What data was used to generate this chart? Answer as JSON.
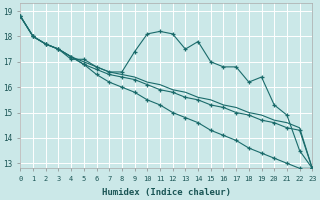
{
  "xlabel": "Humidex (Indice chaleur)",
  "bg_color": "#cbe8e8",
  "grid_color": "#ffffff",
  "line_color": "#1a6b6b",
  "xlim": [
    0,
    23
  ],
  "ylim": [
    12.8,
    19.3
  ],
  "yticks": [
    13,
    14,
    15,
    16,
    17,
    18,
    19
  ],
  "xticks": [
    0,
    1,
    2,
    3,
    4,
    5,
    6,
    7,
    8,
    9,
    10,
    11,
    12,
    13,
    14,
    15,
    16,
    17,
    18,
    19,
    20,
    21,
    22,
    23
  ],
  "series1_x": [
    0,
    1,
    2,
    3,
    4,
    5,
    6,
    7,
    8,
    9,
    10,
    11,
    12,
    13,
    14,
    15,
    16,
    17,
    18,
    19,
    20,
    21,
    22,
    23
  ],
  "series1_y": [
    18.8,
    18.0,
    17.7,
    17.5,
    17.1,
    17.1,
    16.8,
    16.6,
    16.6,
    17.4,
    18.1,
    18.2,
    18.1,
    17.5,
    17.8,
    17.0,
    16.8,
    16.8,
    16.2,
    16.4,
    15.3,
    14.9,
    13.5,
    12.8
  ],
  "series2_x": [
    0,
    1,
    2,
    3,
    4,
    5,
    6,
    7,
    8,
    9,
    10,
    11,
    12,
    13,
    14,
    15,
    16,
    17,
    18,
    19,
    20,
    21,
    22,
    23
  ],
  "series2_y": [
    18.8,
    18.0,
    17.7,
    17.5,
    17.2,
    16.9,
    16.7,
    16.5,
    16.4,
    16.3,
    16.1,
    15.9,
    15.8,
    15.6,
    15.5,
    15.3,
    15.2,
    15.0,
    14.9,
    14.7,
    14.6,
    14.4,
    14.3,
    12.8
  ],
  "series3_x": [
    0,
    1,
    2,
    3,
    4,
    5,
    6,
    7,
    8,
    9,
    10,
    11,
    12,
    13,
    14,
    15,
    16,
    17,
    18,
    19,
    20,
    21,
    22,
    23
  ],
  "series3_y": [
    18.8,
    18.0,
    17.7,
    17.5,
    17.2,
    17.0,
    16.8,
    16.6,
    16.5,
    16.4,
    16.2,
    16.1,
    15.9,
    15.8,
    15.6,
    15.5,
    15.3,
    15.2,
    15.0,
    14.9,
    14.7,
    14.6,
    14.4,
    12.8
  ],
  "series4_x": [
    0,
    1,
    2,
    3,
    4,
    5,
    6,
    7,
    8,
    9,
    10,
    11,
    12,
    13,
    14,
    15,
    16,
    17,
    18,
    19,
    20,
    21,
    22,
    23
  ],
  "series4_y": [
    18.8,
    18.0,
    17.7,
    17.5,
    17.2,
    16.9,
    16.5,
    16.2,
    16.0,
    15.8,
    15.5,
    15.3,
    15.0,
    14.8,
    14.6,
    14.3,
    14.1,
    13.9,
    13.6,
    13.4,
    13.2,
    13.0,
    12.8,
    12.8
  ],
  "xtick_fontsize": 5.0,
  "ytick_fontsize": 5.5,
  "xlabel_fontsize": 6.5
}
